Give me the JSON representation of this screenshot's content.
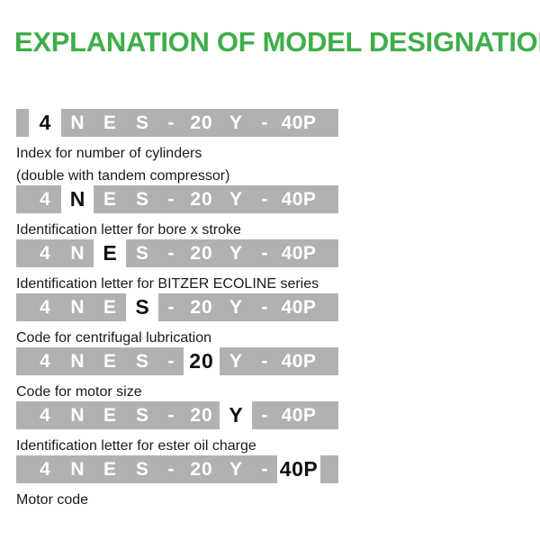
{
  "title": "EXPLANATION OF MODEL DESIGNATION",
  "colors": {
    "green": "#3fae49",
    "gray": "#b1b1b3",
    "highlight_text": "#121212",
    "caption_text": "#1a1a1a",
    "bar_text": "#ffffff"
  },
  "model_code": {
    "full_code": "4NES-20Y-40P",
    "tokens": [
      "4",
      "N",
      "E",
      "S",
      "-",
      "20",
      "Y",
      "-",
      "40P"
    ],
    "rows": [
      {
        "highlight_index": 0,
        "captions": [
          "Index for number of cylinders",
          "(double with tandem compressor)"
        ]
      },
      {
        "highlight_index": 1,
        "captions": [
          "Identification letter for bore x stroke"
        ]
      },
      {
        "highlight_index": 2,
        "captions": [
          "Identification letter for BITZER ECOLINE series"
        ]
      },
      {
        "highlight_index": 3,
        "captions": [
          "Code for centrifugal lubrication"
        ]
      },
      {
        "highlight_index": 5,
        "captions": [
          "Code for motor size"
        ]
      },
      {
        "highlight_index": 6,
        "captions": [
          "Identification letter for ester oil charge"
        ]
      },
      {
        "highlight_index": 8,
        "captions": [
          "Motor code"
        ]
      }
    ]
  }
}
